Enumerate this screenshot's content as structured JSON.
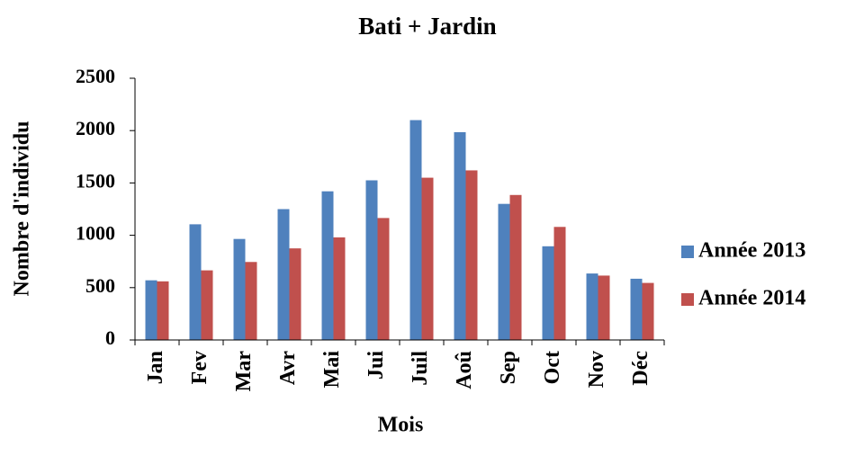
{
  "chart_data": {
    "type": "bar",
    "title": "Bati + Jardin",
    "x_label": "Mois",
    "y_label": "Nombre d'individu",
    "categories": [
      "Jan",
      "Fev",
      "Mar",
      "Avr",
      "Mai",
      "Jui",
      "Juil",
      "Aoû",
      "Sep",
      "Oct",
      "Nov",
      "Déc"
    ],
    "series": [
      {
        "name": "Année 2013",
        "color": "#4f81bd",
        "values": [
          570,
          1105,
          965,
          1250,
          1420,
          1525,
          2100,
          1985,
          1300,
          895,
          635,
          585
        ]
      },
      {
        "name": "Année 2014",
        "color": "#c0504d",
        "values": [
          560,
          665,
          745,
          875,
          980,
          1165,
          1550,
          1620,
          1385,
          1080,
          615,
          545
        ]
      }
    ],
    "ylim": [
      0,
      2500
    ],
    "yticks": [
      0,
      500,
      1000,
      1500,
      2000,
      2500
    ],
    "grid": false,
    "legend": "right"
  }
}
